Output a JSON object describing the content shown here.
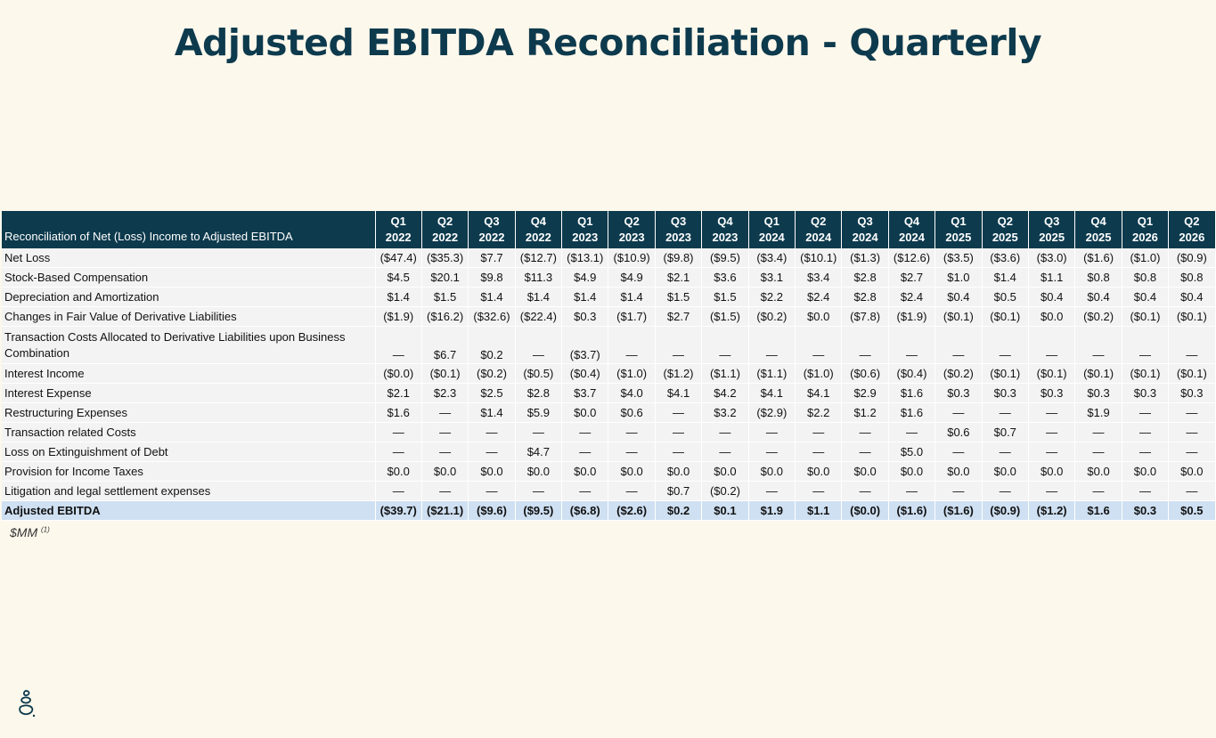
{
  "title": "Adjusted EBITDA Reconciliation - Quarterly",
  "table": {
    "header_label": "Reconciliation of Net (Loss) Income to Adjusted EBITDA",
    "quarters": [
      {
        "q": "Q1",
        "y": "2022"
      },
      {
        "q": "Q2",
        "y": "2022"
      },
      {
        "q": "Q3",
        "y": "2022"
      },
      {
        "q": "Q4",
        "y": "2022"
      },
      {
        "q": "Q1",
        "y": "2023"
      },
      {
        "q": "Q2",
        "y": "2023"
      },
      {
        "q": "Q3",
        "y": "2023"
      },
      {
        "q": "Q4",
        "y": "2023"
      },
      {
        "q": "Q1",
        "y": "2024"
      },
      {
        "q": "Q2",
        "y": "2024"
      },
      {
        "q": "Q3",
        "y": "2024"
      },
      {
        "q": "Q4",
        "y": "2024"
      },
      {
        "q": "Q1",
        "y": "2025"
      },
      {
        "q": "Q2",
        "y": "2025"
      },
      {
        "q": "Q3",
        "y": "2025"
      },
      {
        "q": "Q4",
        "y": "2025"
      },
      {
        "q": "Q1",
        "y": "2026"
      },
      {
        "q": "Q2",
        "y": "2026"
      }
    ],
    "rows": [
      {
        "label": "Net Loss",
        "values": [
          "($47.4)",
          "($35.3)",
          "$7.7",
          "($12.7)",
          "($13.1)",
          "($10.9)",
          "($9.8)",
          "($9.5)",
          "($3.4)",
          "($10.1)",
          "($1.3)",
          "($12.6)",
          "($3.5)",
          "($3.6)",
          "($3.0)",
          "($1.6)",
          "($1.0)",
          "($0.9)"
        ]
      },
      {
        "label": "Stock-Based Compensation",
        "values": [
          "$4.5",
          "$20.1",
          "$9.8",
          "$11.3",
          "$4.9",
          "$4.9",
          "$2.1",
          "$3.6",
          "$3.1",
          "$3.4",
          "$2.8",
          "$2.7",
          "$1.0",
          "$1.4",
          "$1.1",
          "$0.8",
          "$0.8",
          "$0.8"
        ]
      },
      {
        "label": "Depreciation and Amortization",
        "values": [
          "$1.4",
          "$1.5",
          "$1.4",
          "$1.4",
          "$1.4",
          "$1.4",
          "$1.5",
          "$1.5",
          "$2.2",
          "$2.4",
          "$2.8",
          "$2.4",
          "$0.4",
          "$0.5",
          "$0.4",
          "$0.4",
          "$0.4",
          "$0.4"
        ]
      },
      {
        "label": "Changes in Fair Value of Derivative Liabilities",
        "values": [
          "($1.9)",
          "($16.2)",
          "($32.6)",
          "($22.4)",
          "$0.3",
          "($1.7)",
          "$2.7",
          "($1.5)",
          "($0.2)",
          "$0.0",
          "($7.8)",
          "($1.9)",
          "($0.1)",
          "($0.1)",
          "$0.0",
          "($0.2)",
          "($0.1)",
          "($0.1)"
        ]
      },
      {
        "label": "Transaction Costs Allocated to Derivative Liabilities upon Business Combination",
        "tall": true,
        "values": [
          "—",
          "$6.7",
          "$0.2",
          "—",
          "($3.7)",
          "—",
          "—",
          "—",
          "—",
          "—",
          "—",
          "—",
          "—",
          "—",
          "—",
          "—",
          "—",
          "—"
        ]
      },
      {
        "label": "Interest Income",
        "values": [
          "($0.0)",
          "($0.1)",
          "($0.2)",
          "($0.5)",
          "($0.4)",
          "($1.0)",
          "($1.2)",
          "($1.1)",
          "($1.1)",
          "($1.0)",
          "($0.6)",
          "($0.4)",
          "($0.2)",
          "($0.1)",
          "($0.1)",
          "($0.1)",
          "($0.1)",
          "($0.1)"
        ]
      },
      {
        "label": "Interest Expense",
        "values": [
          "$2.1",
          "$2.3",
          "$2.5",
          "$2.8",
          "$3.7",
          "$4.0",
          "$4.1",
          "$4.2",
          "$4.1",
          "$4.1",
          "$2.9",
          "$1.6",
          "$0.3",
          "$0.3",
          "$0.3",
          "$0.3",
          "$0.3",
          "$0.3"
        ]
      },
      {
        "label": "Restructuring Expenses",
        "values": [
          "$1.6",
          "—",
          "$1.4",
          "$5.9",
          "$0.0",
          "$0.6",
          "—",
          "$3.2",
          "($2.9)",
          "$2.2",
          "$1.2",
          "$1.6",
          "—",
          "—",
          "—",
          "$1.9",
          "—",
          "—"
        ]
      },
      {
        "label": "Transaction related Costs",
        "values": [
          "—",
          "—",
          "—",
          "—",
          "—",
          "—",
          "—",
          "—",
          "—",
          "—",
          "—",
          "—",
          "$0.6",
          "$0.7",
          "—",
          "—",
          "—",
          "—"
        ]
      },
      {
        "label": "Loss on Extinguishment of Debt",
        "values": [
          "—",
          "—",
          "—",
          "$4.7",
          "—",
          "—",
          "—",
          "—",
          "—",
          "—",
          "—",
          "$5.0",
          "—",
          "—",
          "—",
          "—",
          "—",
          "—"
        ]
      },
      {
        "label": "Provision for Income Taxes",
        "values": [
          "$0.0",
          "$0.0",
          "$0.0",
          "$0.0",
          "$0.0",
          "$0.0",
          "$0.0",
          "$0.0",
          "$0.0",
          "$0.0",
          "$0.0",
          "$0.0",
          "$0.0",
          "$0.0",
          "$0.0",
          "$0.0",
          "$0.0",
          "$0.0"
        ]
      },
      {
        "label": "Litigation and legal settlement expenses",
        "values": [
          "—",
          "—",
          "—",
          "—",
          "—",
          "—",
          "$0.7",
          "($0.2)",
          "—",
          "—",
          "—",
          "—",
          "—",
          "—",
          "—",
          "—",
          "—",
          "—"
        ]
      }
    ],
    "total": {
      "label": "Adjusted EBITDA",
      "values": [
        "($39.7)",
        "($21.1)",
        "($9.6)",
        "($9.5)",
        "($6.8)",
        "($2.6)",
        "$0.2",
        "$0.1",
        "$1.9",
        "$1.1",
        "($0.0)",
        "($1.6)",
        "($1.6)",
        "($0.9)",
        "($1.2)",
        "$1.6",
        "$0.3",
        "$0.5"
      ]
    }
  },
  "footnote": {
    "text": "$MM",
    "marker": "(1)"
  },
  "colors": {
    "header_bg": "#0d3a4d",
    "total_bg": "#cfe0f2",
    "page_bg": "#fdf8ec"
  },
  "logo": {
    "icon": "stacked-stones-logo-icon"
  }
}
